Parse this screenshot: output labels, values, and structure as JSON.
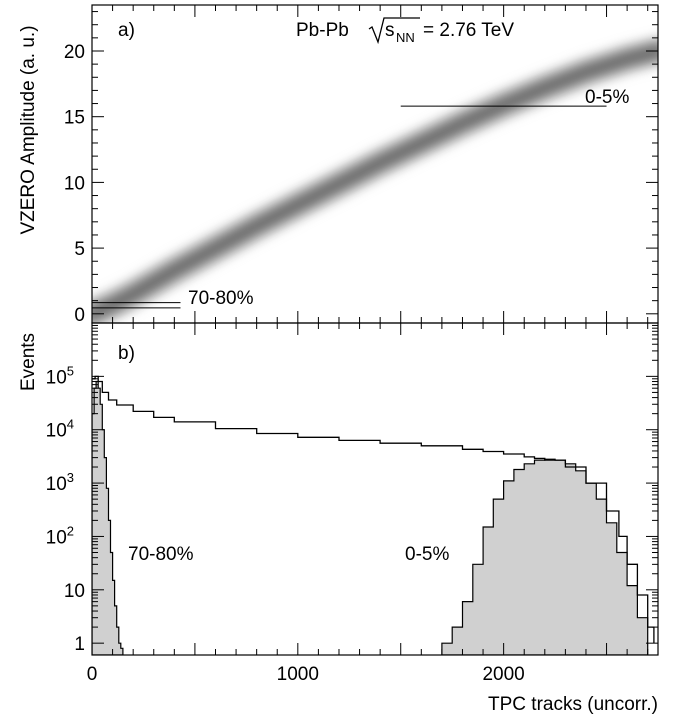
{
  "chart_data": [
    {
      "panel_label": "a)",
      "type": "heatmap",
      "title": "Pb-Pb",
      "energy_label": {
        "radical": "s",
        "subscript": "NN",
        "value": "= 2.76 TeV"
      },
      "ylabel": "VZERO Amplitude (a. u.)",
      "xlabel": "",
      "xlim": [
        0,
        2750
      ],
      "ylim": [
        -0.7,
        23.5
      ],
      "y_ticks": [
        0,
        5,
        10,
        15,
        20
      ],
      "correlation_band": {
        "x": [
          0,
          100,
          200,
          400,
          600,
          800,
          1000,
          1200,
          1400,
          1600,
          1800,
          2000,
          2200,
          2400,
          2600,
          2750
        ],
        "y": [
          0.0,
          0.7,
          1.5,
          3.3,
          5.0,
          6.7,
          8.3,
          9.9,
          11.5,
          13.0,
          14.5,
          15.9,
          17.2,
          18.4,
          19.4,
          20.0
        ]
      },
      "cut_lines": [
        {
          "label": "0-5%",
          "x": [
            1500,
            2500
          ],
          "y": 15.8
        },
        {
          "label": "70-80%",
          "x": [
            0,
            430
          ],
          "y": 0.45
        },
        {
          "label": "",
          "x": [
            0,
            430
          ],
          "y": 0.85
        }
      ],
      "annotations": [
        "0-5%",
        "70-80%"
      ],
      "grid": false
    },
    {
      "panel_label": "b)",
      "type": "area",
      "ylabel": "Events",
      "xlabel": "TPC tracks (uncorr.)",
      "xlim": [
        0,
        2750
      ],
      "yscale": "log",
      "ylim": [
        0.6,
        1000000
      ],
      "x_ticks": [
        0,
        1000,
        2000
      ],
      "y_ticks": [
        {
          "value": 1,
          "base": "1",
          "exp": ""
        },
        {
          "value": 10,
          "base": "10",
          "exp": ""
        },
        {
          "value": 100,
          "base": "10",
          "exp": "2"
        },
        {
          "value": 1000,
          "base": "10",
          "exp": "3"
        },
        {
          "value": 10000,
          "base": "10",
          "exp": "4"
        },
        {
          "value": 100000,
          "base": "10",
          "exp": "5"
        }
      ],
      "series": [
        {
          "name": "",
          "style": "line",
          "x": [
            0,
            15,
            30,
            50,
            80,
            120,
            200,
            300,
            400,
            600,
            800,
            1000,
            1200,
            1400,
            1600,
            1800,
            1900,
            2000,
            2100,
            2150,
            2200,
            2300,
            2400,
            2500,
            2560,
            2600,
            2650,
            2700,
            2730
          ],
          "y": [
            90000,
            100000,
            80000,
            50000,
            36000,
            29000,
            22000,
            17000,
            14000,
            10500,
            8500,
            7200,
            6300,
            5600,
            5000,
            4300,
            3900,
            3500,
            3100,
            2900,
            2700,
            2000,
            1000,
            300,
            100,
            30,
            8,
            2,
            1
          ]
        },
        {
          "name": "70-80%",
          "style": "filled",
          "x": [
            0,
            10,
            20,
            30,
            40,
            50,
            60,
            70,
            80,
            90,
            100,
            110,
            120,
            130,
            140,
            150
          ],
          "y": [
            20000,
            60000,
            80000,
            60000,
            30000,
            10000,
            3000,
            800,
            200,
            50,
            15,
            5,
            2,
            1,
            0.8,
            0.6
          ]
        },
        {
          "name": "0-5%",
          "style": "filled",
          "x": [
            1700,
            1750,
            1800,
            1850,
            1900,
            1950,
            2000,
            2050,
            2100,
            2150,
            2200,
            2250,
            2300,
            2350,
            2400,
            2450,
            2500,
            2550,
            2600,
            2650,
            2700
          ],
          "y": [
            1,
            2,
            6,
            30,
            150,
            500,
            1100,
            1800,
            2300,
            2700,
            2800,
            2700,
            2300,
            1700,
            1000,
            500,
            180,
            50,
            12,
            3,
            1
          ]
        }
      ],
      "annotations": [
        "70-80%",
        "0-5%"
      ],
      "grid": false
    }
  ]
}
